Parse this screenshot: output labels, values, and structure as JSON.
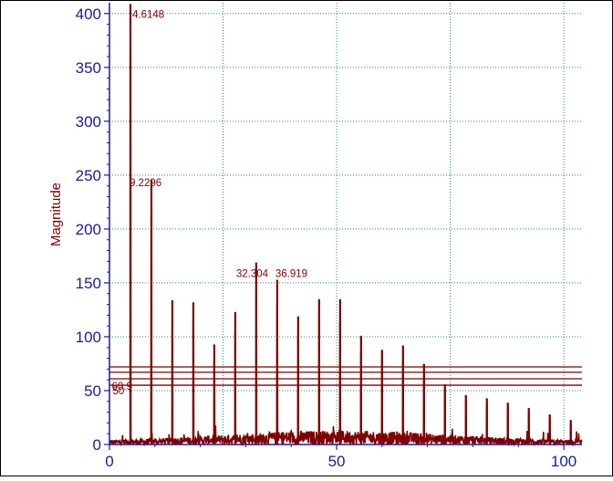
{
  "chart_data": {
    "type": "line",
    "title": "",
    "xlabel": "",
    "ylabel": "Magnitude",
    "xlim": [
      0,
      104
    ],
    "ylim": [
      0,
      410
    ],
    "x_ticks": [
      0,
      50,
      100
    ],
    "y_ticks": [
      0,
      50,
      100,
      150,
      200,
      250,
      300,
      350,
      400
    ],
    "x_tick_labels": [
      "0",
      "50",
      "100"
    ],
    "y_tick_labels": [
      "0",
      "50",
      "100",
      "150",
      "200",
      "250",
      "300",
      "350",
      "400"
    ],
    "grid": true,
    "legend": "none",
    "colors": {
      "axis": "#1a1aa6",
      "series": "#800000",
      "grid": "#2a8a8a",
      "ylabel": "#800000"
    },
    "threshold_lines": [
      55,
      61,
      67,
      72
    ],
    "series": [
      {
        "peaks": [
          {
            "x": 4.6148,
            "y": 408
          },
          {
            "x": 9.2296,
            "y": 245
          },
          {
            "x": 13.844,
            "y": 133
          },
          {
            "x": 18.459,
            "y": 131
          },
          {
            "x": 23.074,
            "y": 92
          },
          {
            "x": 27.689,
            "y": 122
          },
          {
            "x": 32.304,
            "y": 168
          },
          {
            "x": 36.919,
            "y": 152
          },
          {
            "x": 41.533,
            "y": 118
          },
          {
            "x": 46.148,
            "y": 134
          },
          {
            "x": 50.763,
            "y": 134
          },
          {
            "x": 55.378,
            "y": 100
          },
          {
            "x": 59.993,
            "y": 87
          },
          {
            "x": 64.608,
            "y": 91
          },
          {
            "x": 69.222,
            "y": 74
          },
          {
            "x": 73.837,
            "y": 55
          },
          {
            "x": 78.452,
            "y": 45
          },
          {
            "x": 83.067,
            "y": 42
          },
          {
            "x": 87.682,
            "y": 38
          },
          {
            "x": 92.297,
            "y": 33
          },
          {
            "x": 96.911,
            "y": 27
          },
          {
            "x": 101.53,
            "y": 22
          }
        ]
      }
    ],
    "annotations": [
      {
        "text": "4.6148",
        "x": 4.6148,
        "y": 408
      },
      {
        "text": "9.2296",
        "x": 9.2296,
        "y": 245
      },
      {
        "text": "36.919",
        "x": 36.919,
        "y": 152
      },
      {
        "text": "32.304",
        "x": 32.304,
        "y": 168
      },
      {
        "text": "60.9",
        "x": 0.5,
        "y": 61
      },
      {
        "text": "50",
        "x": 0.5,
        "y": 50
      }
    ]
  }
}
